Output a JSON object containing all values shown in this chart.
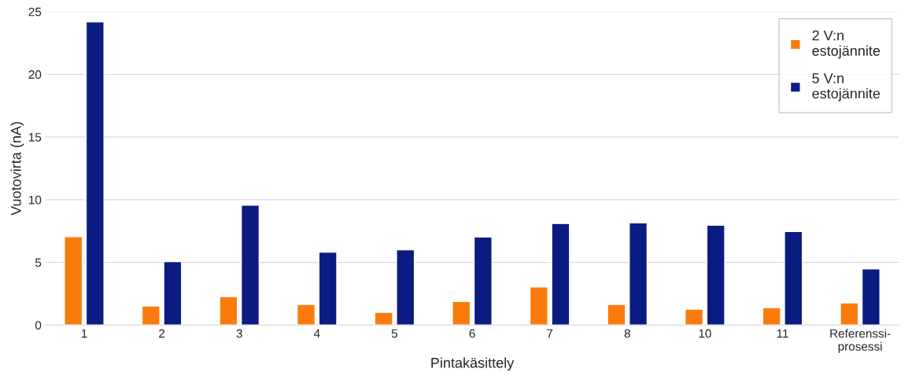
{
  "chart_data": {
    "type": "bar",
    "xlabel": "Pintakäsittely",
    "ylabel": "Vuotovirta (nA)",
    "categories": [
      "1",
      "2",
      "3",
      "4",
      "5",
      "6",
      "7",
      "8",
      "10",
      "11",
      "Referenssi-\nprosessi"
    ],
    "series": [
      {
        "name": "2 V:n\nestojännite",
        "color": "#fa7b0c",
        "values": [
          7.05,
          1.52,
          2.28,
          1.65,
          1.01,
          1.88,
          3.04,
          1.65,
          1.27,
          1.39,
          1.77
        ]
      },
      {
        "name": "5 V:n\nestojännite",
        "color": "#0a1b82",
        "values": [
          24.18,
          5.06,
          9.56,
          5.82,
          6.01,
          7.03,
          8.1,
          8.16,
          7.97,
          7.47,
          4.49
        ]
      }
    ],
    "ylim": [
      0,
      25
    ],
    "yticks": [
      0,
      5,
      10,
      15,
      20,
      25
    ],
    "grid": "y",
    "legend": "top right"
  }
}
